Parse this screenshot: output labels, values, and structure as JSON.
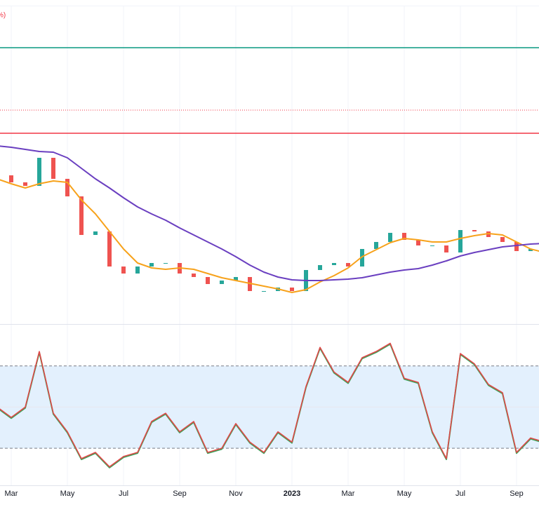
{
  "chart_data": {
    "type": "stock",
    "legend_fragment": "%)",
    "categories": [
      null,
      "Mar",
      null,
      null,
      null,
      "May",
      null,
      null,
      null,
      "Jul",
      null,
      null,
      null,
      "Sep",
      null,
      null,
      null,
      "Nov",
      null,
      null,
      null,
      "2023",
      null,
      null,
      null,
      "Mar",
      null,
      null,
      null,
      "May",
      null,
      null,
      null,
      "Jul",
      null,
      null,
      null,
      "Sep",
      null,
      null
    ],
    "ylim": [
      0,
      462
    ],
    "up_color": "#26a69a",
    "down_color": "#ef5350",
    "series": [
      {
        "kind": "candles",
        "values": [
          212,
          202,
          197,
          237,
          207,
          182,
          127,
          132,
          82,
          72,
          82,
          87,
          87,
          72,
          67,
          57,
          62,
          67,
          47,
          47,
          52,
          47,
          77,
          84,
          87,
          82,
          107,
          117,
          130,
          120,
          112,
          112,
          102,
          134,
          132,
          124,
          117,
          104,
          107,
          112
        ]
      },
      {
        "kind": "line",
        "color": "#f7a21b",
        "values": [
          207,
          200,
          194,
          200,
          204,
          202,
          177,
          157,
          132,
          107,
          87,
          80,
          78,
          80,
          78,
          72,
          66,
          62,
          58,
          54,
          50,
          45,
          49,
          60,
          69,
          80,
          96,
          106,
          116,
          122,
          120,
          117,
          117,
          122,
          126,
          129,
          127,
          117,
          107,
          102
        ]
      },
      {
        "kind": "line",
        "color": "#6a3fc0",
        "values": [
          254,
          252,
          249,
          246,
          245,
          237,
          222,
          207,
          194,
          180,
          167,
          157,
          148,
          137,
          127,
          117,
          107,
          96,
          84,
          74,
          67,
          63,
          62,
          62,
          63,
          64,
          66,
          70,
          74,
          77,
          79,
          84,
          90,
          97,
          102,
          106,
          110,
          112,
          114,
          115
        ]
      }
    ],
    "hlines": [
      {
        "value": 394,
        "color": "#089981",
        "style": "solid"
      },
      {
        "value": 305,
        "color": "#f23645",
        "style": "dotted"
      },
      {
        "value": 272,
        "color": "#f23645",
        "style": "solid"
      }
    ],
    "oscillator": {
      "ylim": [
        12,
        90
      ],
      "band": [
        30,
        70
      ],
      "band_color": "#e3f0fd",
      "levels": [
        {
          "value": 70,
          "style": "dashed"
        },
        {
          "value": 50,
          "style": "faint"
        },
        {
          "value": 30,
          "style": "dashed"
        }
      ],
      "color": "#e04848",
      "shadow_color": "#3aa35a",
      "values": [
        50,
        45,
        50,
        77,
        47,
        38,
        25,
        28,
        21,
        26,
        28,
        43,
        47,
        38,
        43,
        28,
        30,
        42,
        33,
        28,
        38,
        33,
        60,
        79,
        67,
        62,
        74,
        77,
        81,
        64,
        62,
        38,
        25,
        76,
        71,
        61,
        57,
        28,
        35,
        33
      ]
    }
  }
}
